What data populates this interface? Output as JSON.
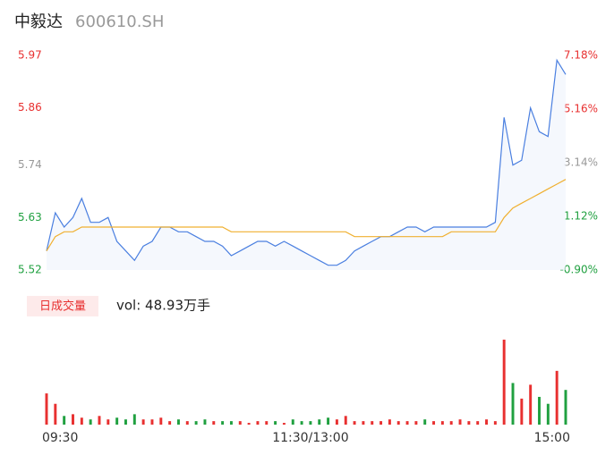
{
  "chart_data": [
    {
      "type": "line",
      "title": "中毅达",
      "subtitle": "600610.SH",
      "categories": [
        "09:30",
        null,
        null,
        null,
        null,
        null,
        null,
        null,
        null,
        null,
        null,
        null,
        null,
        null,
        null,
        null,
        null,
        null,
        null,
        null,
        null,
        null,
        null,
        null,
        null,
        null,
        null,
        null,
        null,
        null,
        "11:30/13:00",
        null,
        null,
        null,
        null,
        null,
        null,
        null,
        null,
        null,
        null,
        null,
        null,
        null,
        null,
        null,
        null,
        null,
        null,
        null,
        null,
        null,
        null,
        null,
        null,
        null,
        null,
        null,
        null,
        "15:00"
      ],
      "series": [
        {
          "name": "price",
          "color": "#4a7fe0",
          "values": [
            5.56,
            5.64,
            5.61,
            5.63,
            5.67,
            5.62,
            5.62,
            5.63,
            5.58,
            5.56,
            5.54,
            5.57,
            5.58,
            5.61,
            5.61,
            5.6,
            5.6,
            5.59,
            5.58,
            5.58,
            5.57,
            5.55,
            5.56,
            5.57,
            5.58,
            5.58,
            5.57,
            5.58,
            5.57,
            5.56,
            5.55,
            5.54,
            5.53,
            5.53,
            5.54,
            5.56,
            5.57,
            5.58,
            5.59,
            5.59,
            5.6,
            5.61,
            5.61,
            5.6,
            5.61,
            5.61,
            5.61,
            5.61,
            5.61,
            5.61,
            5.61,
            5.62,
            5.84,
            5.74,
            5.75,
            5.86,
            5.81,
            5.8,
            5.96,
            5.93
          ]
        },
        {
          "name": "average",
          "color": "#f0b030",
          "values": [
            5.56,
            5.59,
            5.6,
            5.6,
            5.61,
            5.61,
            5.61,
            5.61,
            5.61,
            5.61,
            5.61,
            5.61,
            5.61,
            5.61,
            5.61,
            5.61,
            5.61,
            5.61,
            5.61,
            5.61,
            5.61,
            5.6,
            5.6,
            5.6,
            5.6,
            5.6,
            5.6,
            5.6,
            5.6,
            5.6,
            5.6,
            5.6,
            5.6,
            5.6,
            5.6,
            5.59,
            5.59,
            5.59,
            5.59,
            5.59,
            5.59,
            5.59,
            5.59,
            5.59,
            5.59,
            5.59,
            5.6,
            5.6,
            5.6,
            5.6,
            5.6,
            5.6,
            5.63,
            5.65,
            5.66,
            5.67,
            5.68,
            5.69,
            5.7,
            5.71
          ]
        }
      ],
      "ylim": [
        5.52,
        5.97
      ],
      "yticks": [
        5.97,
        5.86,
        5.74,
        5.63,
        5.52
      ],
      "y2lim": [
        -0.9,
        7.18
      ],
      "y2ticks": [
        {
          "value": 7.18,
          "label": "7.18%"
        },
        {
          "value": 5.16,
          "label": "5.16%"
        },
        {
          "value": 3.14,
          "label": "3.14%"
        },
        {
          "value": 1.12,
          "label": "1.12%"
        },
        {
          "value": -0.9,
          "label": "-0.90%"
        }
      ],
      "up_color": "#e83030",
      "flat_color": "#999999",
      "down_color": "#20a040"
    },
    {
      "type": "bar",
      "title": "日成交量",
      "subtitle": "vol: 48.93万手",
      "ylim": [
        0,
        5
      ],
      "values": [
        1.8,
        1.2,
        0.5,
        0.6,
        0.4,
        0.3,
        0.5,
        0.3,
        0.4,
        0.3,
        0.6,
        0.3,
        0.3,
        0.4,
        0.2,
        0.3,
        0.2,
        0.2,
        0.3,
        0.2,
        0.2,
        0.2,
        0.2,
        0.1,
        0.2,
        0.2,
        0.2,
        0.1,
        0.3,
        0.2,
        0.2,
        0.3,
        0.4,
        0.3,
        0.5,
        0.2,
        0.2,
        0.2,
        0.2,
        0.3,
        0.2,
        0.2,
        0.2,
        0.3,
        0.2,
        0.2,
        0.2,
        0.3,
        0.2,
        0.2,
        0.3,
        0.2,
        4.9,
        2.4,
        1.5,
        2.3,
        1.6,
        1.2,
        3.1,
        2.0
      ],
      "up_color": "#e83030",
      "down_color": "#20a040"
    }
  ]
}
